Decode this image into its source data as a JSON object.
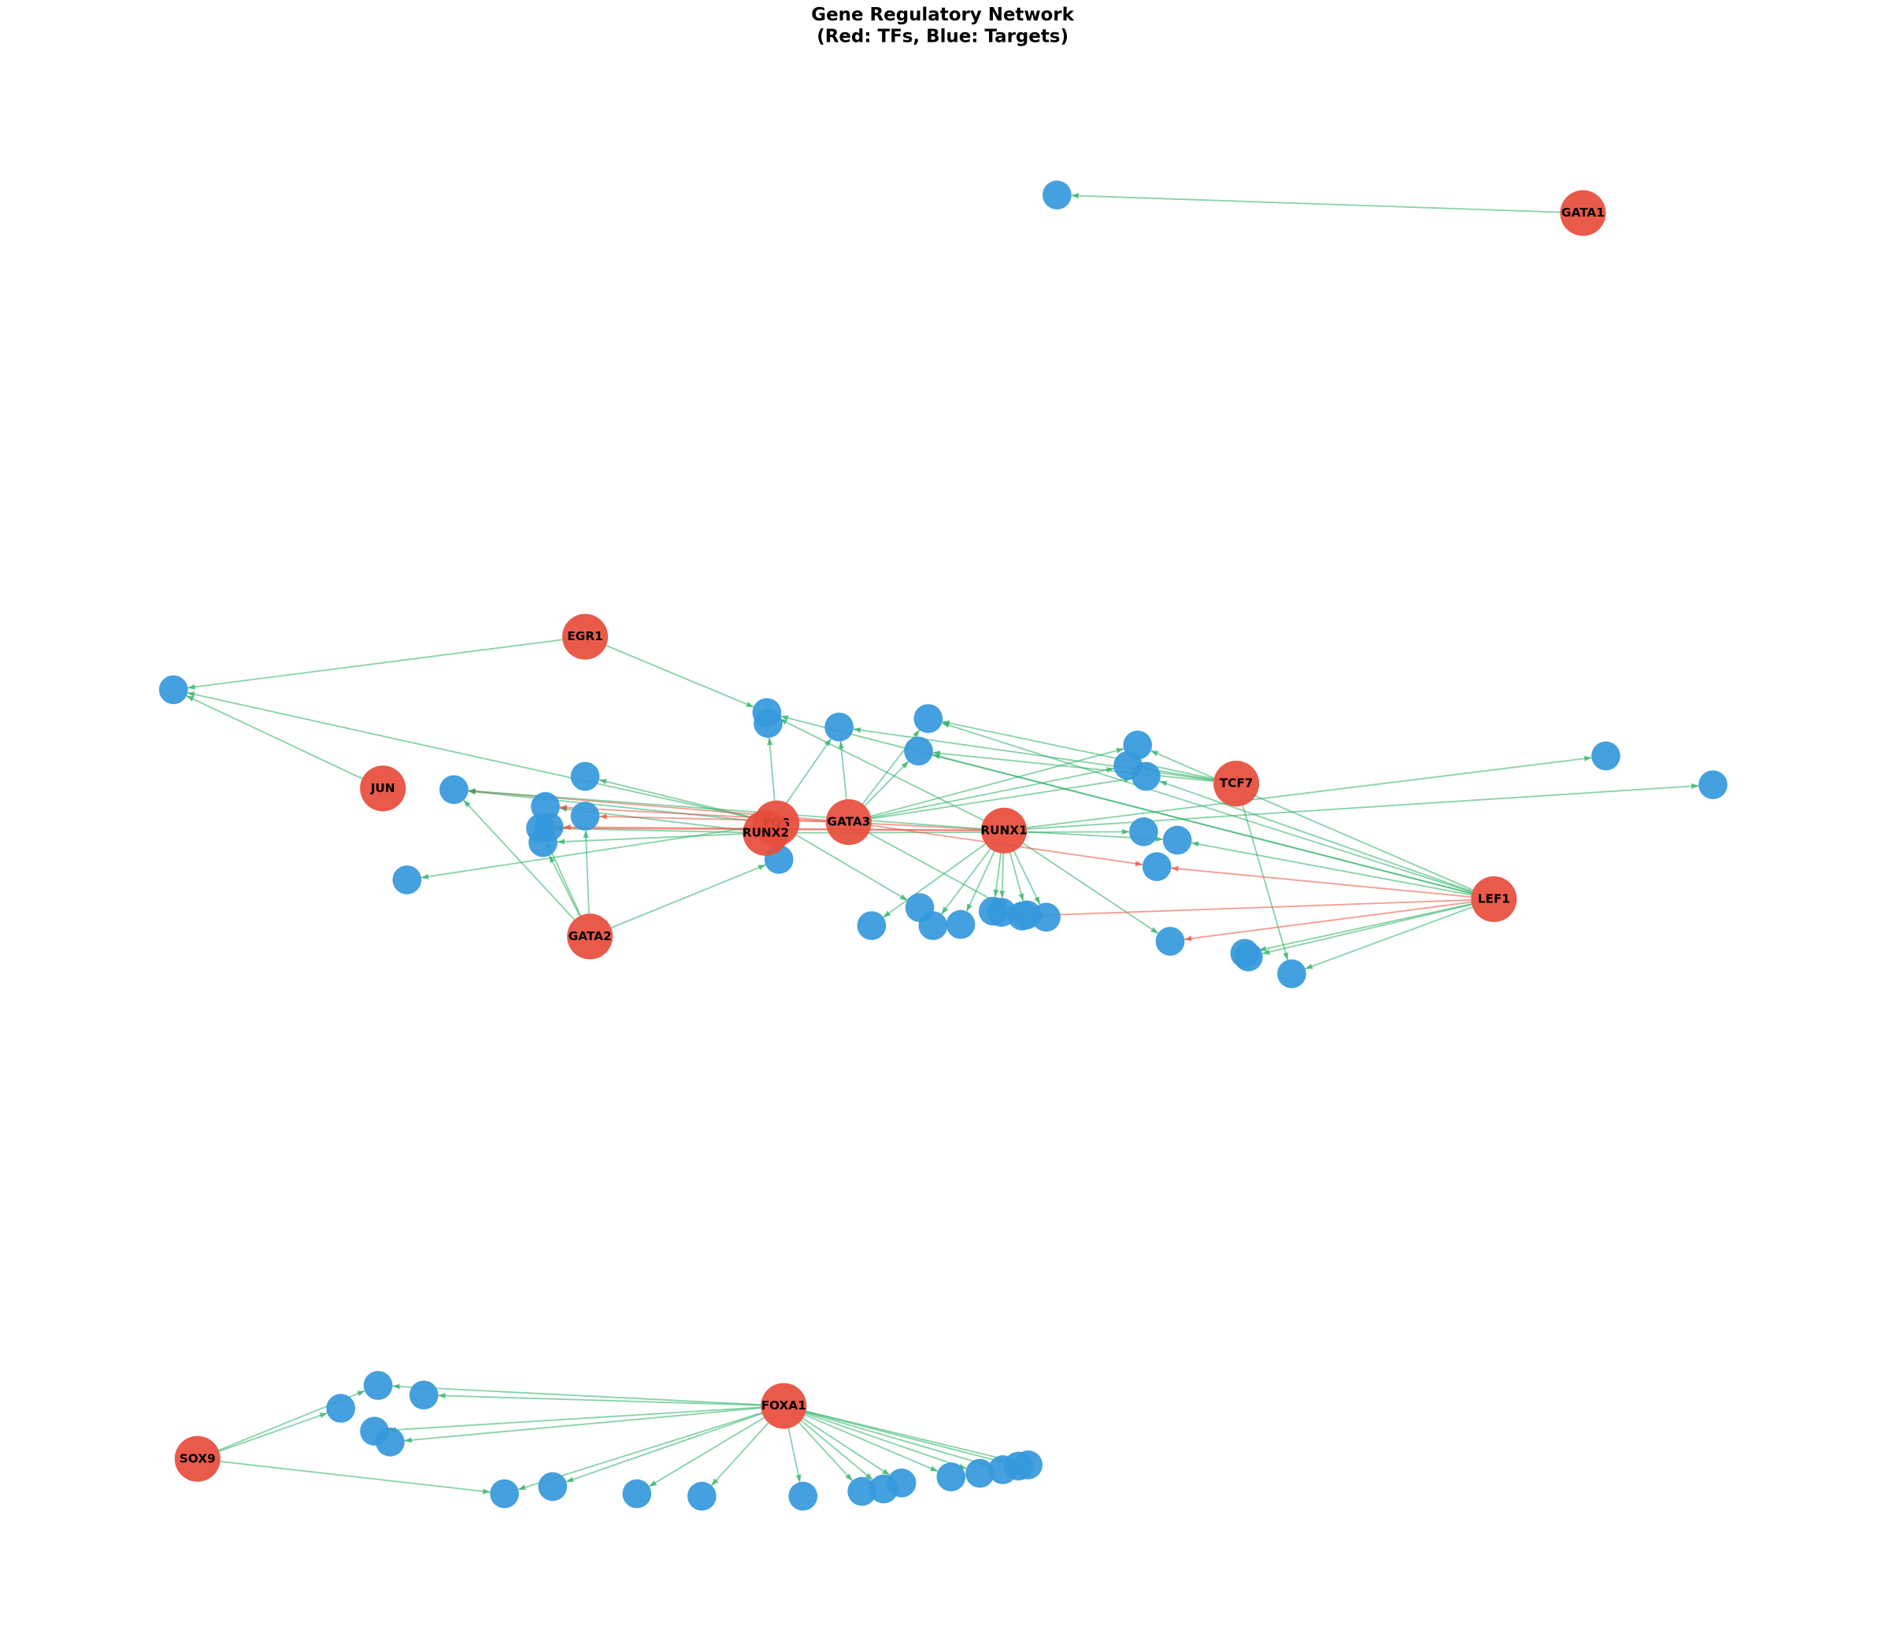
{
  "title": "Gene Regulatory Network",
  "subtitle": "(Red: TFs, Blue: Targets)",
  "transcription_factors": [
    "GATA1",
    "EGR1",
    "JUN",
    "FOS",
    "RUNX2",
    "GATA3",
    "RUNX1",
    "TCF7",
    "LEF1",
    "GATA2",
    "FOXA1",
    "SOX9"
  ]
}
